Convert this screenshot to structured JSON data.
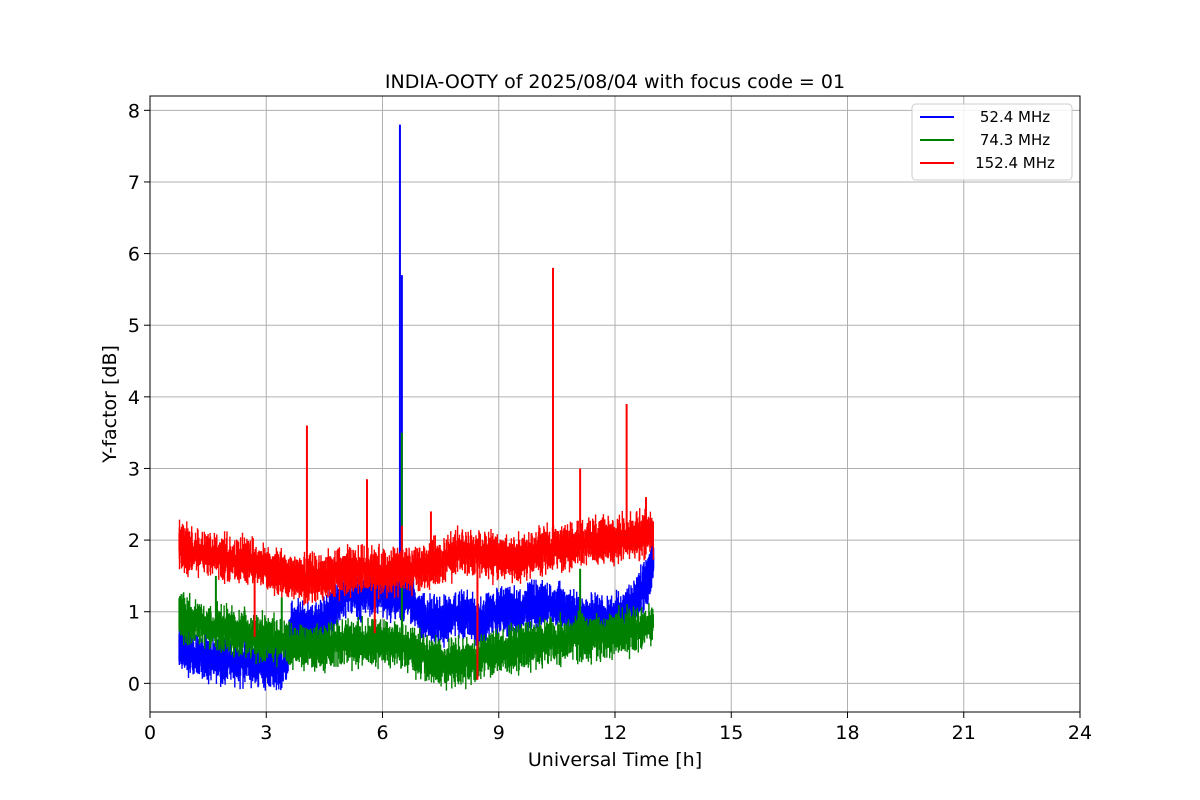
{
  "chart_data": {
    "type": "line",
    "title": "INDIA-OOTY of 2025/08/04 with focus code = 01",
    "xlabel": "Universal Time [h]",
    "ylabel": "Y-factor [dB]",
    "xlim": [
      0,
      24
    ],
    "ylim": [
      -0.4,
      8.2
    ],
    "xticks": [
      0,
      3,
      6,
      9,
      12,
      15,
      18,
      21,
      24
    ],
    "yticks": [
      0,
      1,
      2,
      3,
      4,
      5,
      6,
      7,
      8
    ],
    "grid": true,
    "legend_position": "top-right",
    "series": [
      {
        "name": "52.4 MHz",
        "color": "#0000ff",
        "x": [
          0.75,
          1.0,
          1.5,
          2.0,
          2.5,
          3.0,
          3.5,
          3.65,
          4.0,
          4.5,
          4.9,
          5.5,
          6.0,
          6.3,
          6.45,
          6.5,
          6.6,
          7.0,
          7.5,
          8.0,
          8.5,
          9.0,
          9.5,
          10.0,
          10.5,
          11.0,
          11.5,
          12.0,
          12.5,
          12.8,
          13.0
        ],
        "y": [
          0.55,
          0.45,
          0.35,
          0.3,
          0.3,
          0.28,
          0.25,
          0.8,
          0.8,
          0.85,
          1.2,
          1.25,
          1.3,
          1.2,
          1.3,
          1.1,
          1.3,
          0.95,
          0.85,
          1.0,
          0.85,
          1.0,
          1.0,
          1.1,
          1.1,
          0.95,
          0.95,
          0.9,
          1.15,
          1.4,
          1.75
        ],
        "spikes": [
          [
            6.45,
            7.8
          ],
          [
            6.5,
            5.7
          ],
          [
            2.75,
            0.7
          ],
          [
            5.3,
            1.7
          ]
        ]
      },
      {
        "name": "74.3 MHz",
        "color": "#008000",
        "x": [
          0.75,
          1.0,
          1.5,
          2.0,
          2.5,
          3.0,
          3.5,
          4.0,
          4.5,
          5.0,
          5.5,
          6.0,
          6.5,
          7.0,
          7.5,
          8.0,
          8.5,
          9.0,
          9.5,
          10.0,
          10.5,
          11.0,
          11.5,
          12.0,
          12.5,
          13.0
        ],
        "y": [
          0.95,
          0.9,
          0.8,
          0.75,
          0.7,
          0.62,
          0.55,
          0.5,
          0.52,
          0.6,
          0.55,
          0.6,
          0.55,
          0.4,
          0.28,
          0.3,
          0.35,
          0.45,
          0.5,
          0.55,
          0.6,
          0.65,
          0.65,
          0.7,
          0.75,
          0.85
        ],
        "spikes": [
          [
            1.7,
            1.5
          ],
          [
            3.4,
            1.2
          ],
          [
            6.5,
            3.5
          ],
          [
            11.1,
            1.6
          ]
        ]
      },
      {
        "name": "152.4 MHz",
        "color": "#ff0000",
        "x": [
          0.75,
          1.0,
          1.5,
          2.0,
          2.5,
          3.0,
          3.5,
          4.0,
          4.5,
          5.0,
          5.5,
          6.0,
          6.5,
          7.0,
          7.5,
          8.0,
          8.5,
          9.0,
          9.5,
          10.0,
          10.5,
          11.0,
          11.5,
          12.0,
          12.5,
          13.0
        ],
        "y": [
          1.95,
          1.85,
          1.8,
          1.75,
          1.7,
          1.6,
          1.5,
          1.45,
          1.5,
          1.55,
          1.6,
          1.55,
          1.6,
          1.6,
          1.7,
          1.85,
          1.8,
          1.75,
          1.75,
          1.85,
          1.9,
          1.95,
          2.0,
          2.0,
          2.05,
          2.1
        ],
        "spikes": [
          [
            4.05,
            3.6
          ],
          [
            5.6,
            2.85
          ],
          [
            6.5,
            2.2
          ],
          [
            10.4,
            5.8
          ],
          [
            11.1,
            3.0
          ],
          [
            12.3,
            3.9
          ],
          [
            8.45,
            0.05
          ],
          [
            2.7,
            0.65
          ],
          [
            5.8,
            0.7
          ],
          [
            7.25,
            2.4
          ],
          [
            12.8,
            2.6
          ]
        ]
      }
    ]
  }
}
